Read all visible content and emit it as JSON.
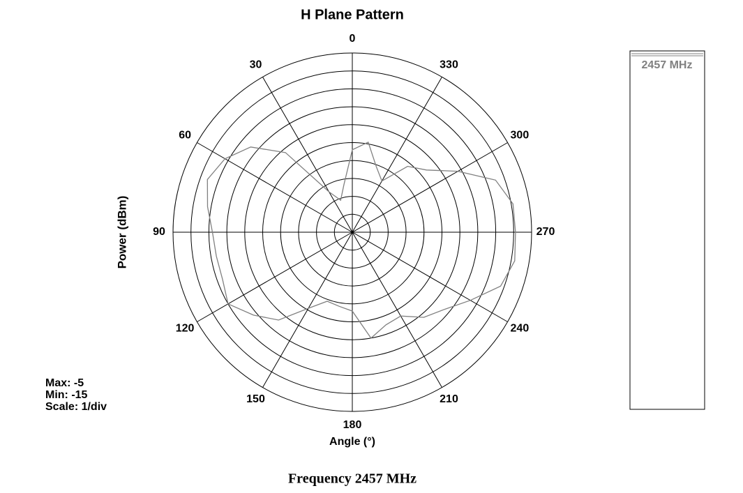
{
  "chart_data": {
    "type": "polar",
    "title": "H Plane Pattern",
    "ylabel": "Power  (dBm)",
    "xlabel": "Angle  (°)",
    "footer": "Frequency 2457 MHz",
    "annotations": [
      "Max: -5",
      "Min: -15",
      "Scale: 1/div"
    ],
    "zero_location": "top",
    "direction": "counterclockwise",
    "theta": [
      0,
      10,
      20,
      30,
      40,
      50,
      60,
      70,
      80,
      90,
      100,
      110,
      120,
      130,
      140,
      150,
      160,
      170,
      180,
      190,
      200,
      210,
      220,
      230,
      240,
      250,
      260,
      270,
      280,
      290,
      300,
      310,
      320,
      330,
      340,
      350
    ],
    "series": [
      {
        "name": "2457 MHz",
        "color": "#808080",
        "values": [
          -10.4,
          -12.3,
          -13.1,
          -12.4,
          -9.2,
          -7.6,
          -6.8,
          -6.4,
          -6.8,
          -7.2,
          -7.3,
          -7.3,
          -7.0,
          -7.8,
          -8.6,
          -10.1,
          -10.9,
          -10.8,
          -10.6,
          -9.0,
          -9.5,
          -9.6,
          -8.8,
          -8.3,
          -7.4,
          -6.2,
          -5.8,
          -5.9,
          -5.9,
          -6.5,
          -8.2,
          -9.6,
          -10.2,
          -11.7,
          -11.1,
          -9.9
        ]
      }
    ],
    "rlim": [
      -15,
      -5
    ],
    "rticks": [
      -15,
      -14,
      -13,
      -12,
      -11,
      -10,
      -9,
      -8,
      -7,
      -6,
      -5
    ],
    "thetaticks": [
      0,
      30,
      60,
      90,
      120,
      150,
      180,
      210,
      240,
      270,
      300,
      330
    ],
    "grid": true
  }
}
